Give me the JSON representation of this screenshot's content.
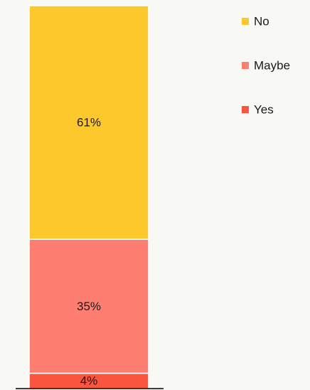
{
  "chart_data": {
    "type": "stacked-bar",
    "categories": [
      null
    ],
    "series": [
      {
        "name": "Yes",
        "color": "#f9553f",
        "values": [
          4
        ],
        "value_labels": [
          "4%"
        ]
      },
      {
        "name": "Maybe",
        "color": "#fe7f72",
        "values": [
          35
        ],
        "value_labels": [
          "35%"
        ]
      },
      {
        "name": "No",
        "color": "#fdc82b",
        "values": [
          61
        ],
        "value_labels": [
          "61%"
        ]
      }
    ],
    "ylim": [
      0,
      100
    ],
    "legend": "right"
  }
}
